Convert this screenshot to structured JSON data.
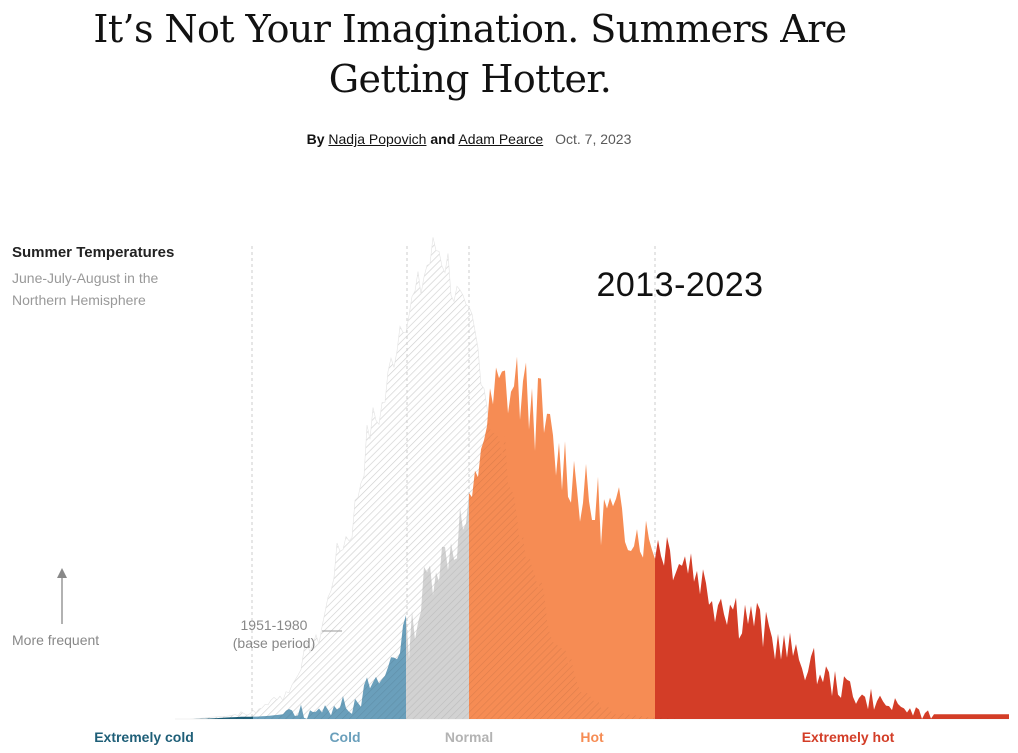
{
  "headline": "It’s Not Your Imagination. Summers Are Getting Hotter.",
  "byline": {
    "prefix": "By",
    "author1": "Nadja Popovich",
    "conjunction": "and",
    "author2": "Adam Pearce",
    "date": "Oct. 7, 2023"
  },
  "chart": {
    "title": "Summer Temperatures",
    "subtitle": "June-July-August in the Northern Hemisphere",
    "period_label": "2013-2023",
    "more_frequent": "More frequent",
    "base_period_line1": "1951-1980",
    "base_period_line2": "(base period)"
  },
  "colors": {
    "extremely_cold": "#1f5f78",
    "cold": "#6a9fbb",
    "normal": "#d2d2d2",
    "hot": "#f68c54",
    "extremely_hot": "#d33d27",
    "base_hatch": "#cfcfcf"
  },
  "chart_data": {
    "type": "area",
    "xlabel": "",
    "ylabel": "More frequent",
    "categories": [
      "Extremely cold",
      "Cold",
      "Normal",
      "Hot",
      "Extremely hot"
    ],
    "series": [
      {
        "name": "1951-1980",
        "x": [
          -4,
          -3.5,
          -3,
          -2.5,
          -2,
          -1.5,
          -1,
          -0.5,
          0,
          0.5,
          1,
          1.5,
          2,
          2.5,
          3,
          3.5,
          4
        ],
        "values": [
          0,
          0.5,
          1.5,
          5,
          16,
          38,
          64,
          87,
          100,
          84,
          58,
          32,
          14,
          4,
          1,
          0.3,
          0
        ]
      },
      {
        "name": "2013-2023",
        "x": [
          -4,
          -3,
          -2,
          -1.5,
          -1,
          -0.5,
          0,
          0.5,
          0.75,
          1,
          1.25,
          1.5,
          2,
          2.5,
          3,
          3.5,
          4,
          4.5,
          5,
          5.5,
          6,
          6.5,
          7,
          7.5,
          8
        ],
        "values": [
          0,
          0.5,
          1.5,
          3,
          7,
          18,
          34,
          42,
          62,
          70,
          71,
          67,
          55,
          45,
          42,
          38,
          34,
          26,
          22,
          16,
          11,
          7,
          4,
          2,
          1
        ]
      }
    ]
  },
  "category_labels": {
    "extremely_cold": "Extremely cold",
    "cold": "Cold",
    "normal": "Normal",
    "hot": "Hot",
    "extremely_hot": "Extremely hot"
  }
}
